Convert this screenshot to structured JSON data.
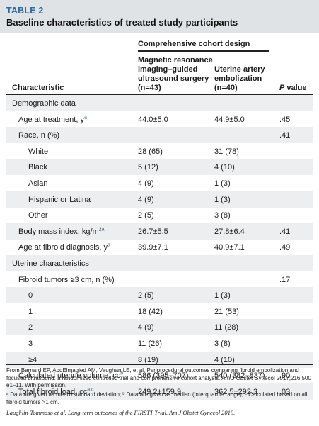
{
  "header": {
    "label": "TABLE 2",
    "title": "Baseline characteristics of treated study participants"
  },
  "columns": {
    "group": "Comprehensive cohort design",
    "characteristic": "Characteristic",
    "mri": [
      "Magnetic resonance",
      "imaging–guided",
      "ultrasound surgery",
      "(n=43)"
    ],
    "uae": [
      "Uterine artery",
      "embolization",
      "(n=40)"
    ],
    "p_italic": "P",
    "p_rest": " value"
  },
  "rows": [
    {
      "label": "Demographic data",
      "indent": 0,
      "mri": "",
      "uae": "",
      "p": "",
      "sup": "",
      "shade": true
    },
    {
      "label": "Age at treatment, y",
      "indent": 1,
      "mri": "44.0±5.0",
      "uae": "44.9±5.0",
      "p": ".45",
      "sup": "a",
      "shade": false
    },
    {
      "label": "Race, n (%)",
      "indent": 1,
      "mri": "",
      "uae": "",
      "p": ".41",
      "sup": "",
      "shade": true
    },
    {
      "label": "White",
      "indent": 2,
      "mri": "28 (65)",
      "uae": "31 (78)",
      "p": "",
      "sup": "",
      "shade": false
    },
    {
      "label": "Black",
      "indent": 2,
      "mri": "5 (12)",
      "uae": "4 (10)",
      "p": "",
      "sup": "",
      "shade": true
    },
    {
      "label": "Asian",
      "indent": 2,
      "mri": "4 (9)",
      "uae": "1 (3)",
      "p": "",
      "sup": "",
      "shade": false
    },
    {
      "label": "Hispanic or Latina",
      "indent": 2,
      "mri": "4 (9)",
      "uae": "1 (3)",
      "p": "",
      "sup": "",
      "shade": true
    },
    {
      "label": "Other",
      "indent": 2,
      "mri": "2 (5)",
      "uae": "3 (8)",
      "p": "",
      "sup": "",
      "shade": false
    },
    {
      "label": "Body mass index, kg/m",
      "indent": 1,
      "mri": "26.7±5.5",
      "uae": "27.8±6.4",
      "p": ".41",
      "sup": "2a",
      "shade": true
    },
    {
      "label": "Age at fibroid diagnosis, y",
      "indent": 1,
      "mri": "39.9±7.1",
      "uae": "40.9±7.1",
      "p": ".49",
      "sup": "a",
      "shade": false
    },
    {
      "label": "Uterine characteristics",
      "indent": 0,
      "mri": "",
      "uae": "",
      "p": "",
      "sup": "",
      "shade": true
    },
    {
      "label": "Fibroid tumors ≥3 cm, n (%)",
      "indent": 1,
      "mri": "",
      "uae": "",
      "p": ".17",
      "sup": "",
      "shade": false
    },
    {
      "label": "0",
      "indent": 2,
      "mri": "2 (5)",
      "uae": "1 (3)",
      "p": "",
      "sup": "",
      "shade": true
    },
    {
      "label": "1",
      "indent": 2,
      "mri": "18 (42)",
      "uae": "21 (53)",
      "p": "",
      "sup": "",
      "shade": false
    },
    {
      "label": "2",
      "indent": 2,
      "mri": "4 (9)",
      "uae": "11 (28)",
      "p": "",
      "sup": "",
      "shade": true
    },
    {
      "label": "3",
      "indent": 2,
      "mri": "11 (26)",
      "uae": "3 (8)",
      "p": "",
      "sup": "",
      "shade": false
    },
    {
      "label": "≥4",
      "indent": 2,
      "mri": "8 (19)",
      "uae": "4 (10)",
      "p": "",
      "sup": "",
      "shade": true
    },
    {
      "label": "Calculated uterine volume, cc",
      "indent": 1,
      "mri": "586 (395–707)",
      "uae": "540 (382–837)",
      "p": ".90",
      "sup": "b",
      "shade": false
    },
    {
      "label": "Total fibroid load, cc",
      "indent": 1,
      "mri": "249.2±159.9",
      "uae": "362.5±292.3",
      "p": ".03",
      "sup": "a,c",
      "shade": true
    }
  ],
  "footnotes": {
    "source": "From Barnard EP, AbdElmagied AM, Vaughan LE, et al. Periprocedural outcomes comparing fibroid embolization and focused ultrasound: a randomized controlled trial and comprehensive cohort analysis. Am J Obstet Gynecol 2017;216:500 e1–11. With permission.",
    "notes": "ᵃ Data are given as mean±standard deviation; ᵇ Data are given as median (interquartile range); ᶜ Calculated based on all fibroid tumors >1 cm.",
    "citation": "Laughlin-Tommaso et al. Long-term outcomes of the FIRSTT Trial. Am J Obstet Gynecol 2019."
  }
}
